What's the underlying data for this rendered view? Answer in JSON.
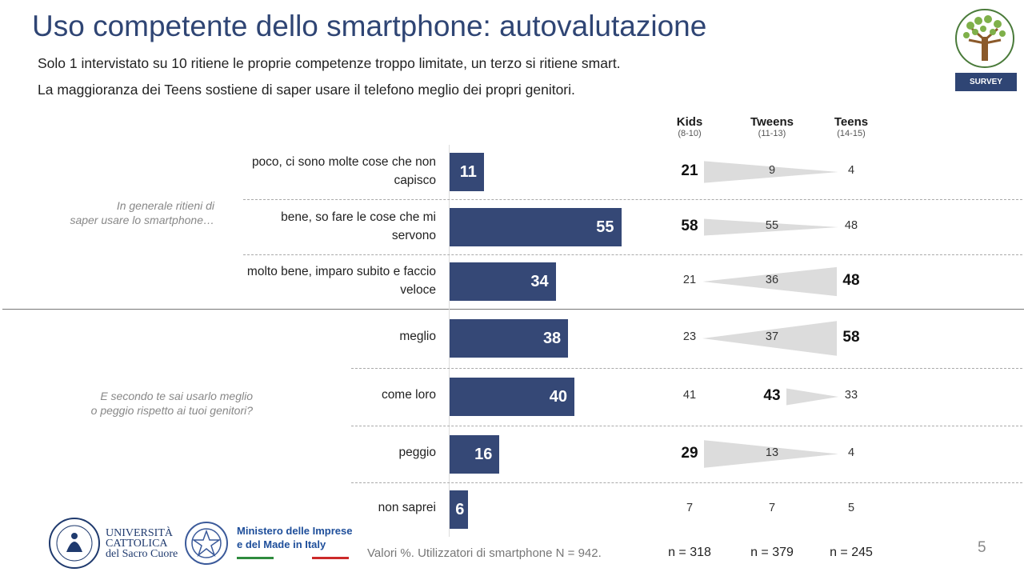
{
  "title": "Uso competente dello smartphone: autovalutazione",
  "subtitles": [
    "Solo 1 intervistato su 10 ritiene le proprie competenze troppo limitate, un terzo si ritiene smart.",
    "La maggioranza dei Teens sostiene di saper usare il telefono meglio dei propri genitori."
  ],
  "badge": "SURVEY",
  "columns": [
    {
      "name": "Kids",
      "ages": "(8-10)",
      "n": "n = 318"
    },
    {
      "name": "Tweens",
      "ages": "(11-13)",
      "n": "n = 379"
    },
    {
      "name": "Teens",
      "ages": "(14-15)",
      "n": "n = 245"
    }
  ],
  "questions": [
    {
      "text": "In generale ritieni di\nsaper usare lo smartphone…"
    },
    {
      "text": "E secondo te sai usarlo meglio\no peggio rispetto ai tuoi genitori?"
    }
  ],
  "chart_data": {
    "type": "bar",
    "orientation": "horizontal",
    "unit": "%",
    "categories": [
      "poco, ci sono molte cose che non capisco",
      "bene, so fare le cose che mi servono",
      "molto bene, imparo subito e faccio veloce",
      "meglio",
      "come loro",
      "peggio",
      "non saprei"
    ],
    "total": [
      11,
      55,
      34,
      38,
      40,
      16,
      6
    ],
    "series": [
      {
        "name": "Kids",
        "values": [
          21,
          58,
          21,
          23,
          41,
          29,
          7
        ]
      },
      {
        "name": "Tweens",
        "values": [
          9,
          55,
          36,
          37,
          43,
          13,
          7
        ]
      },
      {
        "name": "Teens",
        "values": [
          4,
          48,
          48,
          58,
          33,
          4,
          5
        ]
      }
    ],
    "highlight": [
      "Kids",
      "Kids",
      "Teens",
      "Teens",
      "Tweens",
      "Kids",
      "none"
    ]
  },
  "footnote": "Valori %. Utilizzatori di smartphone N = 942.",
  "page_number": "5",
  "logos": {
    "university": "UNIVERSITÀ\nCATTOLICA\ndel Sacro Cuore",
    "ministry": "Ministero delle Imprese\ne del Made in Italy"
  },
  "colors": {
    "bar": "#354876",
    "title": "#2f4574",
    "wedge": "#dcdcdc"
  }
}
